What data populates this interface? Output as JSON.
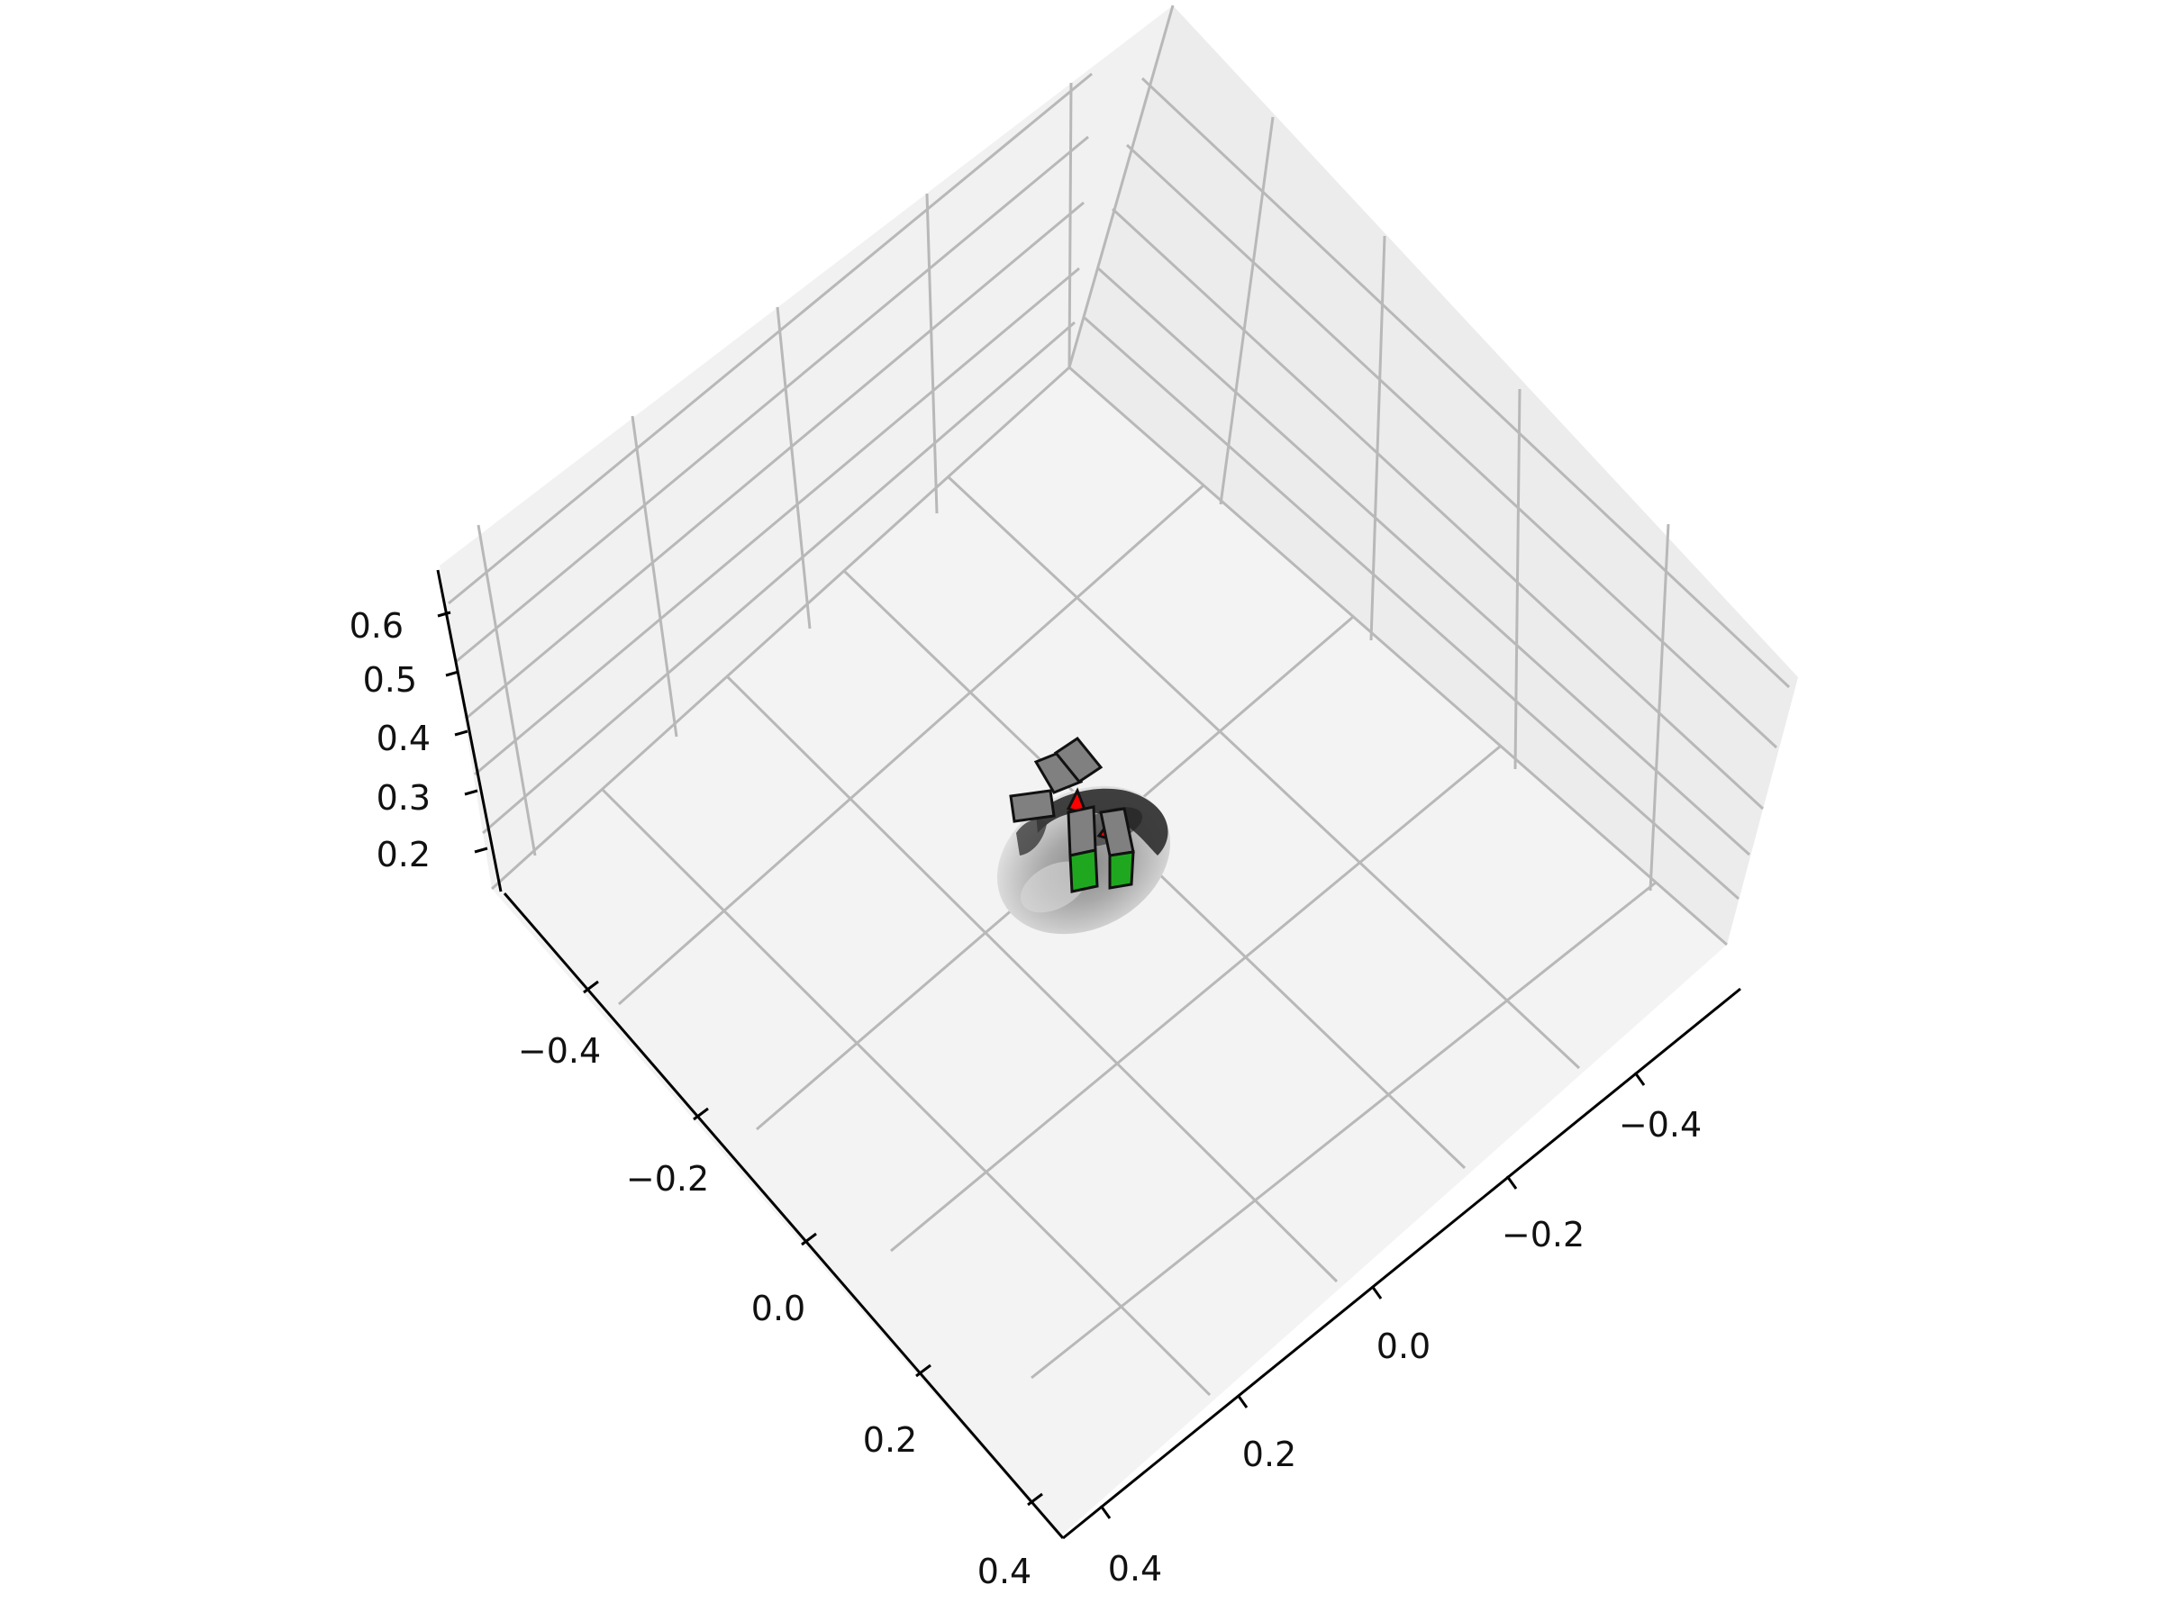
{
  "chart_data": {
    "type": "3d-scatter-scene",
    "title": "",
    "xlabel": "",
    "ylabel": "",
    "zlabel": "",
    "grid": true,
    "pane_color": "#f2f2f2",
    "grid_color": "#b8b8b8",
    "axes": {
      "x": {
        "range": [
          -0.5,
          0.4
        ],
        "ticks": [
          "−0.4",
          "−0.2",
          "0.0",
          "0.2",
          "0.4"
        ]
      },
      "y": {
        "range": [
          -0.5,
          0.4
        ],
        "ticks": [
          "−0.4",
          "−0.2",
          "0.0",
          "0.2",
          "0.4"
        ]
      },
      "z": {
        "range": [
          0.15,
          0.65
        ],
        "ticks": [
          "0.2",
          "0.3",
          "0.4",
          "0.5",
          "0.6"
        ]
      }
    },
    "objects": [
      {
        "name": "gripper-block-1",
        "color": "#808080",
        "edge": "#111111"
      },
      {
        "name": "gripper-block-2",
        "color": "#808080",
        "edge": "#111111"
      },
      {
        "name": "gripper-block-3",
        "color": "#808080",
        "edge": "#111111"
      },
      {
        "name": "gripper-block-4",
        "color": "#808080",
        "edge": "#111111"
      },
      {
        "name": "gripper-block-5",
        "color": "#808080",
        "edge": "#111111"
      },
      {
        "name": "target-block-1",
        "color": "#1fa81f",
        "edge": "#111111"
      },
      {
        "name": "target-block-2",
        "color": "#1fa81f",
        "edge": "#111111"
      },
      {
        "name": "marker",
        "color": "#ff0000",
        "edge": "#111111"
      }
    ],
    "surface": {
      "name": "point-cloud-disc",
      "colors": [
        "#c8c8c8",
        "#9a9a9a",
        "#2a2a2a"
      ]
    }
  }
}
